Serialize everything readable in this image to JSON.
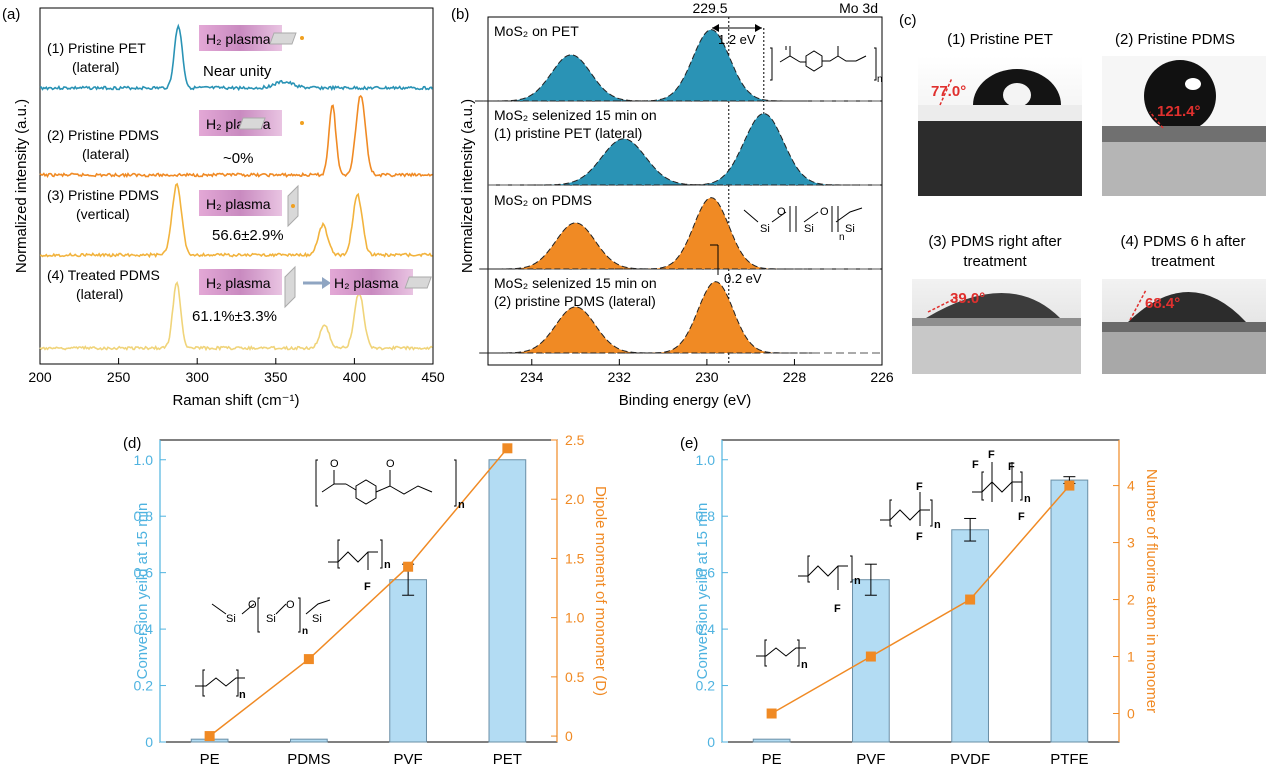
{
  "colors": {
    "teal": "#2a93b5",
    "orange": "#f08a24",
    "orange_light": "#f2b33d",
    "yellow": "#f0d47a",
    "light_blue_bar": "#b3dcf3",
    "bar_stroke": "#6a8fa6",
    "label_blue": "#4fb3e0",
    "label_orange": "#f08a24",
    "plasma_box": "#d58fc3",
    "angle_red": "#e0302e"
  },
  "panel_a": {
    "panel_label": "(a)",
    "xlabel": "Raman shift (cm⁻¹)",
    "ylabel": "Normalized intensity (a.u.)",
    "xticks": [
      "200",
      "250",
      "300",
      "350",
      "400",
      "450"
    ],
    "traces": [
      {
        "label_line1": "(1) Pristine PET",
        "label_line2": "(lateral)",
        "note": "Near unity",
        "plasma": "H₂ plasma"
      },
      {
        "label_line1": "(2) Pristine PDMS",
        "label_line2": "(lateral)",
        "note": "~0%",
        "plasma": "H₂ plasma"
      },
      {
        "label_line1": "(3) Pristine PDMS",
        "label_line2": "(vertical)",
        "note": "56.6±2.9%",
        "plasma": "H₂ plasma"
      },
      {
        "label_line1": "(4) Treated PDMS",
        "label_line2": "(lateral)",
        "note": "61.1%±3.3%",
        "plasma": "H₂ plasma",
        "plasma2": "H₂ plasma"
      }
    ]
  },
  "panel_b": {
    "panel_label": "(b)",
    "xlabel": "Binding energy (eV)",
    "ylabel": "Normalized intensity (a.u.)",
    "corner_label": "Mo 3d",
    "ref_line_label": "229.5",
    "xticks": [
      "234",
      "232",
      "230",
      "228",
      "226"
    ],
    "shift1": "1.2 eV",
    "shift2": "0.2 eV",
    "traces": [
      {
        "label_line1": "MoS₂ on PET",
        "label_line2": ""
      },
      {
        "label_line1": "MoS₂ selenized 15 min on",
        "label_line2": "(1) pristine PET (lateral)"
      },
      {
        "label_line1": "MoS₂ on PDMS",
        "label_line2": ""
      },
      {
        "label_line1": "MoS₂ selenized 15 min on",
        "label_line2": "(2) pristine PDMS (lateral)"
      }
    ]
  },
  "panel_c": {
    "panel_label": "(c)",
    "images": [
      {
        "title_line1": "(1) Pristine PET",
        "title_line2": "",
        "angle": "77.0°"
      },
      {
        "title_line1": "(2) Pristine PDMS",
        "title_line2": "",
        "angle": "121.4°"
      },
      {
        "title_line1": "(3) PDMS right after",
        "title_line2": "treatment",
        "angle": "39.0°"
      },
      {
        "title_line1": "(4) PDMS 6 h after",
        "title_line2": "treatment",
        "angle": "68.4°"
      }
    ]
  },
  "chart_data": [
    {
      "panel_label": "(d)",
      "type": "bar",
      "categories": [
        "PE",
        "PDMS",
        "PVF",
        "PET"
      ],
      "series": [
        {
          "values": [
            0.01,
            0.01,
            0.575,
            1.0
          ],
          "errors": [
            0,
            0,
            0.055,
            0
          ],
          "axis": "left"
        },
        {
          "values": [
            0.0,
            0.65,
            1.43,
            2.43
          ],
          "axis": "right",
          "style": "line"
        }
      ],
      "ylabel": "Conversion yeild at 15 min",
      "ylabel_right": "Dipole moment of monomer (D)",
      "ylim": [
        0,
        1.07
      ],
      "ylim_right": [
        -0.05,
        2.5
      ],
      "yticks": [
        "0",
        "0.2",
        "0.4",
        "0.6",
        "0.8",
        "1.0"
      ],
      "yticks_right": [
        "0",
        "0.5",
        "1.0",
        "1.5",
        "2.0",
        "2.5"
      ],
      "n_label": "n"
    },
    {
      "panel_label": "(e)",
      "type": "bar",
      "categories": [
        "PE",
        "PVF",
        "PVDF",
        "PTFE"
      ],
      "series": [
        {
          "values": [
            0.01,
            0.575,
            0.752,
            0.928
          ],
          "errors": [
            0,
            0.055,
            0.04,
            0.012
          ],
          "axis": "left"
        },
        {
          "values": [
            0,
            1,
            2,
            4
          ],
          "axis": "right",
          "style": "line"
        }
      ],
      "ylabel": "Conversion yeild at 15 min",
      "ylabel_right": "Number of fluorine atom in monomer",
      "ylim": [
        0,
        1.07
      ],
      "ylim_right": [
        -0.5,
        4.8
      ],
      "yticks": [
        "0",
        "0.2",
        "0.4",
        "0.6",
        "0.8",
        "1.0"
      ],
      "yticks_right": [
        "0",
        "1",
        "2",
        "3",
        "4"
      ],
      "n_label": "n"
    }
  ]
}
